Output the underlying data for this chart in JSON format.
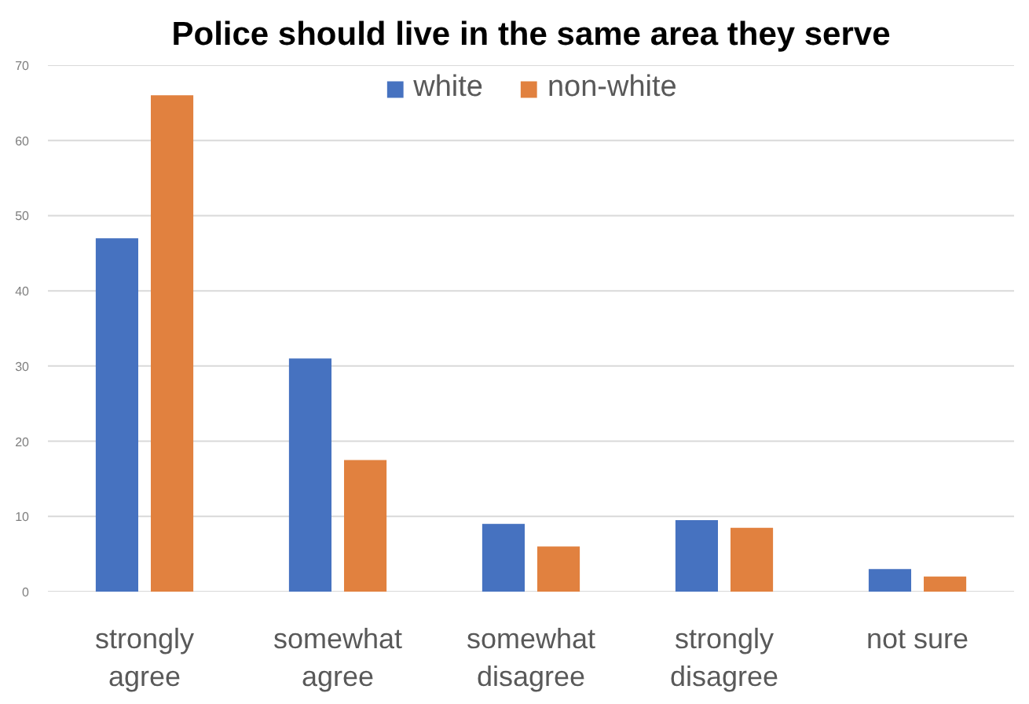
{
  "chart_data": {
    "type": "bar",
    "title": "Police should live in the same area they serve",
    "categories": [
      "strongly agree",
      "somewhat agree",
      "somewhat disagree",
      "strongly disagree",
      "not sure"
    ],
    "series": [
      {
        "name": "white",
        "color": "#4672c0",
        "values": [
          47,
          31,
          9,
          9.5,
          3
        ]
      },
      {
        "name": "non-white",
        "color": "#e1813f",
        "values": [
          66,
          17.5,
          6,
          8.5,
          2
        ]
      }
    ],
    "ylim": [
      0,
      70
    ],
    "yticks": [
      0,
      10,
      20,
      30,
      40,
      50,
      60,
      70
    ],
    "grid": "y",
    "legend": "top"
  }
}
